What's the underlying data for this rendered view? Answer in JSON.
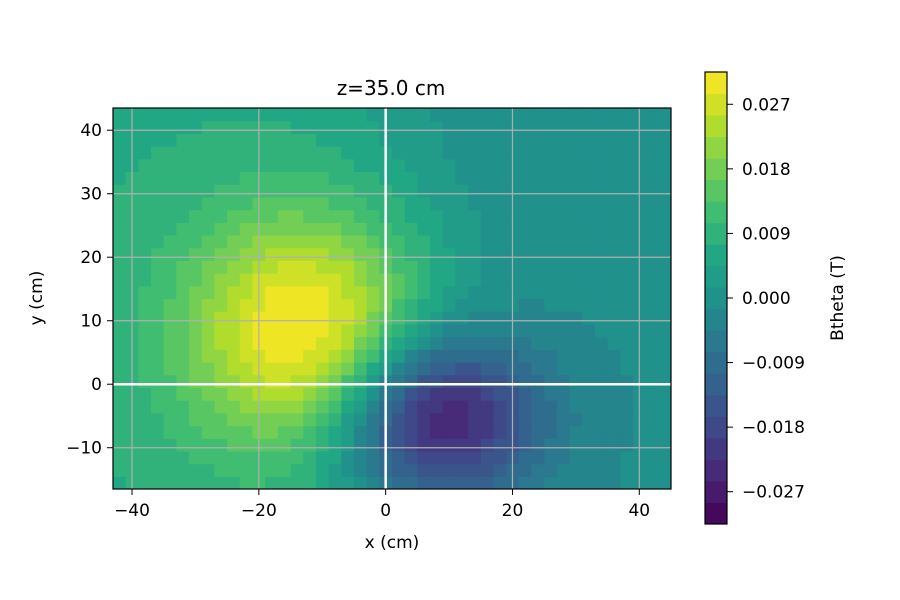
{
  "chart_data": {
    "type": "heatmap",
    "title": "z=35.0 cm",
    "xlabel": "x (cm)",
    "ylabel": "y (cm)",
    "xlim": [
      -43,
      45
    ],
    "ylim": [
      -16.5,
      43.5
    ],
    "xticks": [
      -40,
      -20,
      0,
      20,
      40
    ],
    "xtick_labels": [
      "−40",
      "−20",
      "0",
      "20",
      "40"
    ],
    "yticks": [
      -10,
      0,
      10,
      20,
      30,
      40
    ],
    "ytick_labels": [
      "−10",
      "0",
      "10",
      "20",
      "30",
      "40"
    ],
    "grid": true,
    "reference_lines": {
      "x": 0,
      "y": 0,
      "color": "#ffffff"
    },
    "colormap": "viridis",
    "colorbar": {
      "label": "Btheta (T)",
      "vmin": -0.0315,
      "vmax": 0.0315,
      "levels": 21,
      "ticks": [
        -0.027,
        -0.018,
        -0.009,
        0.0,
        0.009,
        0.018,
        0.027
      ],
      "tick_labels": [
        "−0.027",
        "−0.018",
        "−0.009",
        "0.000",
        "0.009",
        "0.018",
        "0.027"
      ]
    },
    "field_model": {
      "description": "Btheta as a function of (x, y): positive lobe for x<0, negative lobe for x>0, slightly positive near top",
      "positive_peak": {
        "x": -12,
        "y": 8,
        "value": 0.028
      },
      "negative_peak": {
        "x": 7,
        "y": -5,
        "value": -0.03
      },
      "background": 0.003
    }
  }
}
